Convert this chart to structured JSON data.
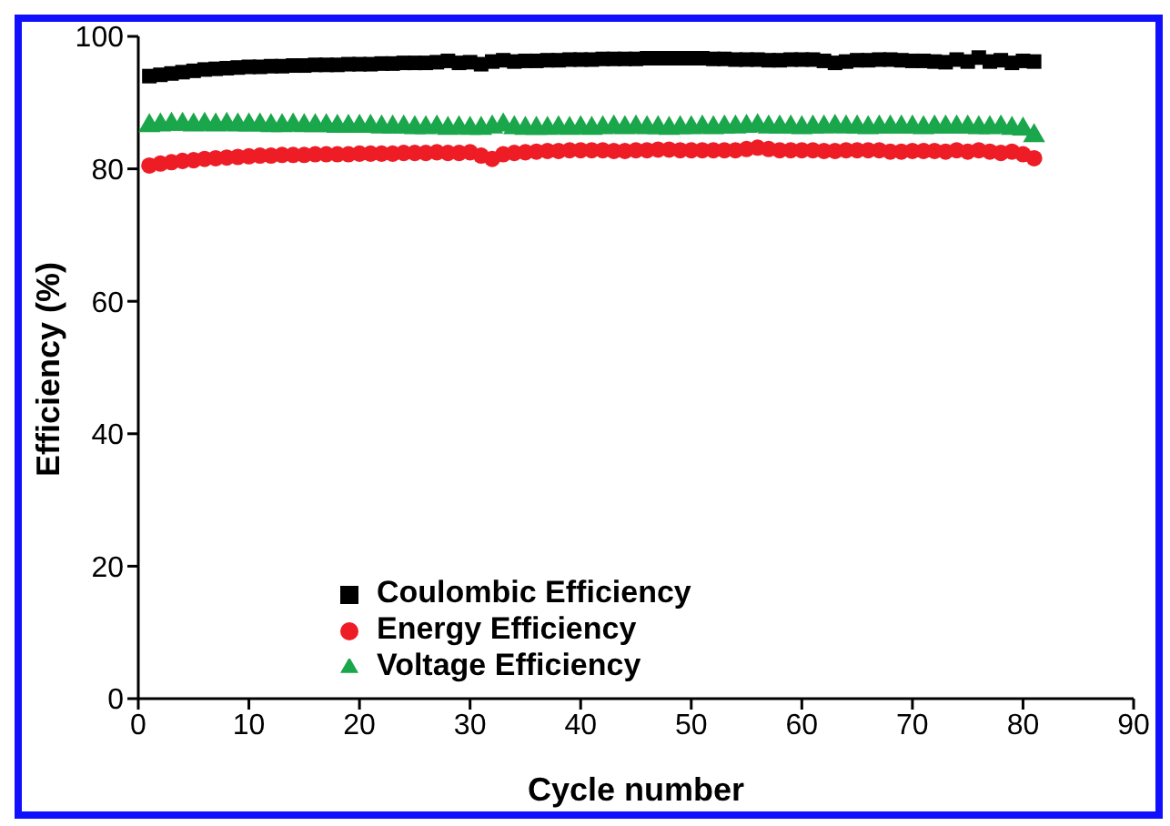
{
  "chart_data": {
    "type": "scatter",
    "xlabel": "Cycle number",
    "ylabel": "Efficiency (%)",
    "x": [
      1,
      2,
      3,
      4,
      5,
      6,
      7,
      8,
      9,
      10,
      11,
      12,
      13,
      14,
      15,
      16,
      17,
      18,
      19,
      20,
      21,
      22,
      23,
      24,
      25,
      26,
      27,
      28,
      29,
      30,
      31,
      32,
      33,
      34,
      35,
      36,
      37,
      38,
      39,
      40,
      41,
      42,
      43,
      44,
      45,
      46,
      47,
      48,
      49,
      50,
      51,
      52,
      53,
      54,
      55,
      56,
      57,
      58,
      59,
      60,
      61,
      62,
      63,
      64,
      65,
      66,
      67,
      68,
      69,
      70,
      71,
      72,
      73,
      74,
      75,
      76,
      77,
      78,
      79,
      80,
      81
    ],
    "series": [
      {
        "name": "Coulombic Efficiency",
        "color": "#000000",
        "marker": "square",
        "values": [
          94.0,
          94.2,
          94.4,
          94.6,
          94.8,
          95.0,
          95.1,
          95.2,
          95.3,
          95.4,
          95.4,
          95.5,
          95.5,
          95.6,
          95.6,
          95.7,
          95.7,
          95.7,
          95.8,
          95.8,
          95.8,
          95.9,
          95.9,
          96.0,
          96.0,
          96.0,
          96.1,
          96.3,
          96.0,
          96.1,
          95.8,
          96.2,
          96.4,
          96.2,
          96.3,
          96.3,
          96.4,
          96.4,
          96.5,
          96.5,
          96.5,
          96.6,
          96.6,
          96.6,
          96.6,
          96.7,
          96.7,
          96.7,
          96.7,
          96.7,
          96.7,
          96.6,
          96.6,
          96.5,
          96.5,
          96.5,
          96.4,
          96.4,
          96.5,
          96.5,
          96.5,
          96.3,
          96.0,
          96.2,
          96.4,
          96.4,
          96.5,
          96.5,
          96.4,
          96.3,
          96.3,
          96.2,
          96.1,
          96.5,
          96.2,
          96.8,
          96.2,
          96.4,
          96.0,
          96.3,
          96.2
        ]
      },
      {
        "name": "Energy Efficiency",
        "color": "#ee1c25",
        "marker": "circle",
        "values": [
          80.5,
          80.8,
          81.0,
          81.2,
          81.3,
          81.5,
          81.6,
          81.7,
          81.8,
          81.9,
          82.0,
          82.0,
          82.1,
          82.1,
          82.1,
          82.2,
          82.2,
          82.2,
          82.2,
          82.3,
          82.3,
          82.3,
          82.3,
          82.4,
          82.4,
          82.4,
          82.5,
          82.4,
          82.4,
          82.5,
          82.0,
          81.5,
          82.2,
          82.4,
          82.5,
          82.6,
          82.7,
          82.7,
          82.8,
          82.8,
          82.8,
          82.8,
          82.7,
          82.7,
          82.8,
          82.8,
          82.9,
          82.9,
          82.8,
          82.8,
          82.8,
          82.8,
          82.8,
          82.8,
          83.0,
          83.2,
          83.0,
          82.8,
          82.8,
          82.8,
          82.8,
          82.7,
          82.7,
          82.8,
          82.8,
          82.8,
          82.8,
          82.6,
          82.6,
          82.7,
          82.7,
          82.7,
          82.6,
          82.8,
          82.6,
          82.8,
          82.6,
          82.4,
          82.6,
          82.2,
          81.6
        ]
      },
      {
        "name": "Voltage Efficiency",
        "color": "#1aa64a",
        "marker": "triangle",
        "values": [
          86.5,
          86.6,
          86.7,
          86.7,
          86.6,
          86.7,
          86.6,
          86.7,
          86.6,
          86.6,
          86.6,
          86.5,
          86.5,
          86.6,
          86.5,
          86.5,
          86.5,
          86.4,
          86.4,
          86.4,
          86.4,
          86.3,
          86.3,
          86.3,
          86.2,
          86.2,
          86.3,
          86.1,
          86.2,
          86.1,
          86.1,
          86.3,
          86.6,
          86.2,
          86.1,
          86.1,
          86.1,
          86.2,
          86.1,
          86.2,
          86.1,
          86.2,
          86.3,
          86.2,
          86.3,
          86.2,
          86.2,
          86.1,
          86.2,
          86.2,
          86.3,
          86.2,
          86.3,
          86.3,
          86.4,
          86.5,
          86.3,
          86.3,
          86.3,
          86.2,
          86.3,
          86.3,
          86.4,
          86.3,
          86.3,
          86.2,
          86.3,
          86.3,
          86.3,
          86.3,
          86.2,
          86.3,
          86.3,
          86.3,
          86.3,
          86.2,
          86.2,
          86.3,
          86.1,
          86.0,
          85.0
        ]
      }
    ],
    "xlim": [
      0,
      90
    ],
    "xticks": [
      0,
      10,
      20,
      30,
      40,
      50,
      60,
      70,
      80,
      90
    ],
    "ylim": [
      0,
      100
    ],
    "yticks": [
      0,
      20,
      40,
      60,
      80,
      100
    ],
    "grid": false,
    "legend": "bottom left"
  }
}
